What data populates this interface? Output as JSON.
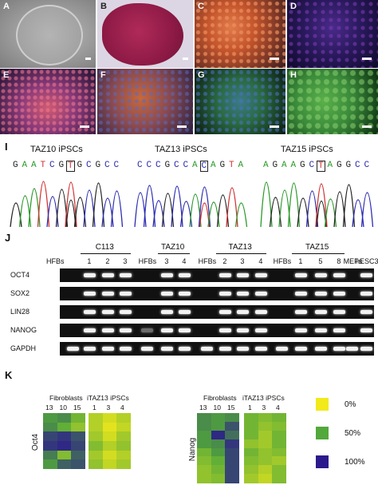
{
  "panels_top": [
    "A",
    "B",
    "C",
    "D"
  ],
  "panels_mid": [
    "E",
    "F",
    "G",
    "H"
  ],
  "panel_I": {
    "letter": "I",
    "clones": [
      {
        "title": "TAZ10 iPSCs",
        "seq": "GAATCGTGCGCC",
        "boxed_index": 6
      },
      {
        "title": "TAZ13 iPSCs",
        "seq": "CCCGCCACAGTA",
        "boxed_index": 7
      },
      {
        "title": "TAZ15 iPSCs",
        "seq": "AGAAGCTAGGCC",
        "boxed_index": 6
      }
    ]
  },
  "panel_J": {
    "letter": "J",
    "groups": [
      "C113",
      "TAZ10",
      "TAZ13",
      "TAZ15"
    ],
    "lanes": [
      "HFBs",
      "1",
      "2",
      "3",
      "HFBs",
      "3",
      "4",
      "HFBs",
      "2",
      "3",
      "4",
      "HFBs",
      "1",
      "5",
      "8",
      "MEFs",
      "hESC3"
    ],
    "genes": [
      "OCT4",
      "SOX2",
      "LIN28",
      "NANOG",
      "GAPDH"
    ],
    "bands": [
      [
        0,
        1,
        1,
        1,
        0,
        1,
        1,
        0,
        1,
        1,
        1,
        0,
        1,
        1,
        1,
        0,
        1
      ],
      [
        0,
        1,
        1,
        1,
        0,
        1,
        1,
        0,
        1,
        1,
        1,
        0,
        1,
        1,
        1,
        0,
        1
      ],
      [
        0,
        1,
        1,
        1,
        0,
        1,
        1,
        0,
        1,
        1,
        1,
        0,
        1,
        1,
        1,
        0,
        1
      ],
      [
        0,
        1,
        1,
        1,
        0.4,
        1,
        1,
        0,
        1,
        1,
        1,
        0,
        1,
        1,
        1,
        0,
        1
      ],
      [
        1,
        1,
        1,
        1,
        1,
        1,
        1,
        1,
        1,
        1,
        1,
        1,
        1,
        1,
        1,
        1,
        1
      ]
    ]
  },
  "panel_K": {
    "letter": "K",
    "left": {
      "gene": "Oct4",
      "group1": "Fibroblasts",
      "group2": "iTAZ13 iPSCs",
      "cols1": [
        "13",
        "10",
        "15"
      ],
      "cols2": [
        "1",
        "3",
        "4"
      ],
      "matrix1": [
        [
          55,
          60,
          40
        ],
        [
          60,
          45,
          30
        ],
        [
          85,
          90,
          80
        ],
        [
          90,
          95,
          85
        ],
        [
          65,
          35,
          75
        ],
        [
          55,
          75,
          80
        ]
      ],
      "matrix2": [
        [
          20,
          10,
          20
        ],
        [
          20,
          5,
          15
        ],
        [
          25,
          10,
          25
        ],
        [
          35,
          20,
          30
        ],
        [
          25,
          10,
          20
        ],
        [
          30,
          15,
          25
        ]
      ]
    },
    "right": {
      "gene": "Nanog",
      "group1": "Fibroblasts",
      "group2": "iTAZ13 iPSCs",
      "cols1": [
        "13",
        "10",
        "15"
      ],
      "cols2": [
        "1",
        "3",
        "4"
      ],
      "matrix1": [
        [
          60,
          55,
          60
        ],
        [
          60,
          55,
          80
        ],
        [
          55,
          95,
          70
        ],
        [
          55,
          60,
          90
        ],
        [
          40,
          55,
          85
        ],
        [
          35,
          45,
          85
        ],
        [
          30,
          40,
          85
        ],
        [
          30,
          35,
          85
        ]
      ],
      "matrix2": [
        [
          40,
          35,
          40
        ],
        [
          40,
          30,
          35
        ],
        [
          40,
          25,
          40
        ],
        [
          30,
          25,
          40
        ],
        [
          40,
          30,
          35
        ],
        [
          35,
          30,
          25
        ],
        [
          30,
          20,
          35
        ],
        [
          25,
          15,
          35
        ]
      ]
    },
    "legend": [
      {
        "label": "0%",
        "color": "#f2ea1b"
      },
      {
        "label": "50%",
        "color": "#52a83a"
      },
      {
        "label": "100%",
        "color": "#2b1a8c"
      }
    ]
  }
}
